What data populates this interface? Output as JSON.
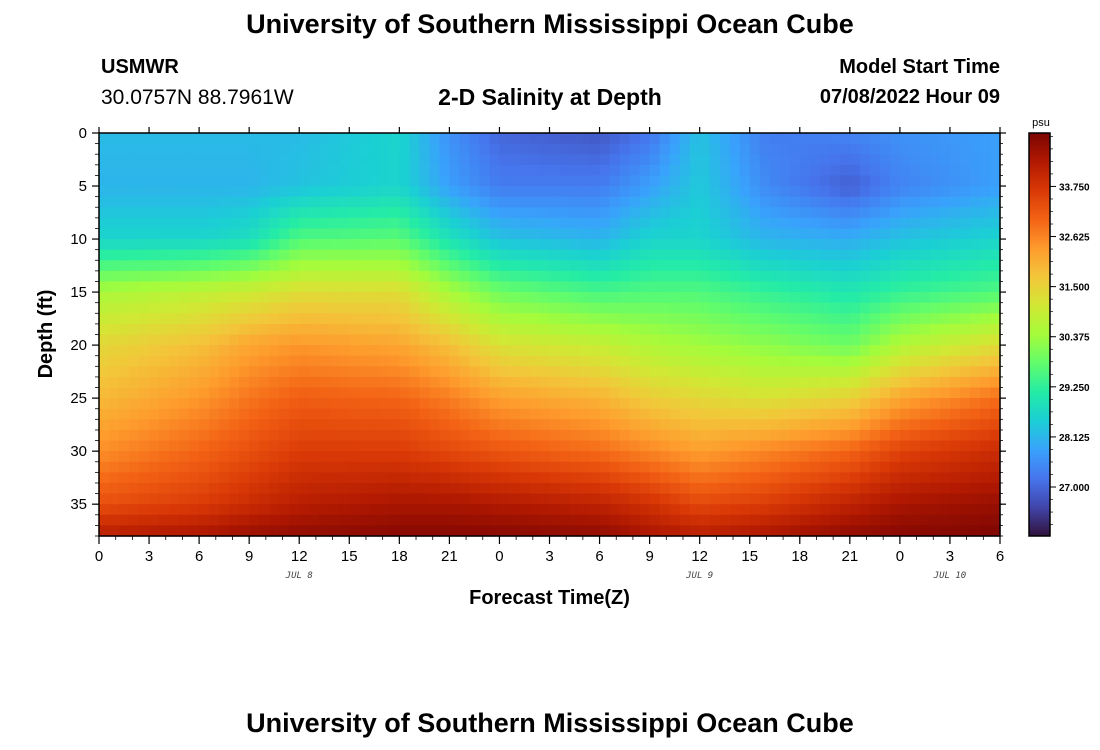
{
  "header": {
    "title": "University of Southern Mississippi Ocean Cube",
    "station_id": "USMWR",
    "coordinates": "30.0757N  88.7961W",
    "plot_title": "2-D Salinity at Depth",
    "run_label": "Model Start Time",
    "run_value": "07/08/2022 Hour 09"
  },
  "footer": {
    "title": "University of Southern Mississippi Ocean Cube"
  },
  "chart_data": {
    "type": "heatmap",
    "xlabel": "Forecast Time(Z)",
    "ylabel": "Depth (ft)",
    "x_tick_labels": [
      "0",
      "3",
      "6",
      "9",
      "12",
      "15",
      "18",
      "21",
      "0",
      "3",
      "6",
      "9",
      "12",
      "15",
      "18",
      "21",
      "0",
      "3",
      "6"
    ],
    "date_labels": [
      {
        "label": "JUL 8",
        "tick_index": 4
      },
      {
        "label": "JUL 9",
        "tick_index": 12
      },
      {
        "label": "JUL 10",
        "tick_index": 17
      }
    ],
    "x_unit": "hours since 07/08 00Z",
    "x_range": [
      0,
      54
    ],
    "y_ticks": [
      0,
      5,
      10,
      15,
      20,
      25,
      30,
      35
    ],
    "ylim": [
      0,
      38
    ],
    "y_inverted": true,
    "colorbar": {
      "unit": "psu",
      "min": 25.9,
      "max": 34.95,
      "ticks": [
        27.0,
        28.125,
        29.25,
        30.375,
        31.5,
        32.625,
        33.75
      ],
      "tick_labels": [
        "27.000",
        "28.125",
        "29.250",
        "30.375",
        "31.500",
        "32.625",
        "33.750"
      ],
      "colormap": [
        "#30123b",
        "#4145ab",
        "#4675ed",
        "#39a2fc",
        "#1bcfd4",
        "#24eca6",
        "#61fc6c",
        "#a4fc3b",
        "#d1e834",
        "#f3c63a",
        "#fe9b2d",
        "#f36315",
        "#d93806",
        "#b11901",
        "#7a0402"
      ]
    },
    "salinity_profiles": {
      "hours": [
        0,
        6,
        9,
        12,
        18,
        21,
        24,
        30,
        33,
        36,
        40,
        45,
        48,
        54
      ],
      "depths": [
        0,
        5,
        10,
        15,
        20,
        25,
        30,
        35,
        38
      ],
      "values": [
        [
          28.2,
          28.2,
          28.2,
          28.2,
          28.6,
          27.6,
          27.0,
          26.8,
          27.2,
          28.3,
          27.3,
          27.4,
          27.6,
          27.8
        ],
        [
          28.1,
          28.1,
          28.1,
          28.3,
          28.6,
          27.8,
          27.3,
          27.3,
          27.8,
          28.4,
          27.5,
          26.9,
          27.4,
          27.8
        ],
        [
          28.6,
          28.6,
          28.8,
          29.6,
          29.7,
          28.9,
          28.3,
          28.1,
          28.6,
          28.6,
          28.1,
          28.0,
          28.3,
          28.6
        ],
        [
          30.5,
          30.8,
          31.0,
          31.3,
          31.3,
          30.5,
          29.9,
          29.5,
          29.6,
          29.6,
          29.3,
          29.0,
          29.3,
          29.6
        ],
        [
          31.4,
          31.8,
          32.2,
          32.4,
          32.2,
          31.8,
          31.2,
          30.9,
          30.6,
          30.4,
          30.2,
          29.9,
          30.6,
          31.3
        ],
        [
          31.9,
          32.4,
          32.8,
          33.1,
          33.0,
          32.7,
          32.3,
          32.0,
          31.6,
          31.4,
          31.2,
          31.5,
          32.2,
          32.9
        ],
        [
          32.5,
          33.0,
          33.3,
          33.6,
          33.6,
          33.4,
          33.2,
          32.9,
          32.6,
          32.3,
          32.6,
          33.0,
          33.5,
          33.9
        ],
        [
          33.3,
          33.6,
          33.9,
          34.2,
          34.4,
          34.4,
          34.3,
          34.1,
          33.8,
          33.4,
          33.6,
          34.1,
          34.4,
          34.6
        ],
        [
          34.2,
          34.4,
          34.6,
          34.7,
          34.8,
          34.8,
          34.8,
          34.7,
          34.4,
          34.2,
          34.4,
          34.7,
          34.8,
          34.9
        ]
      ]
    }
  }
}
